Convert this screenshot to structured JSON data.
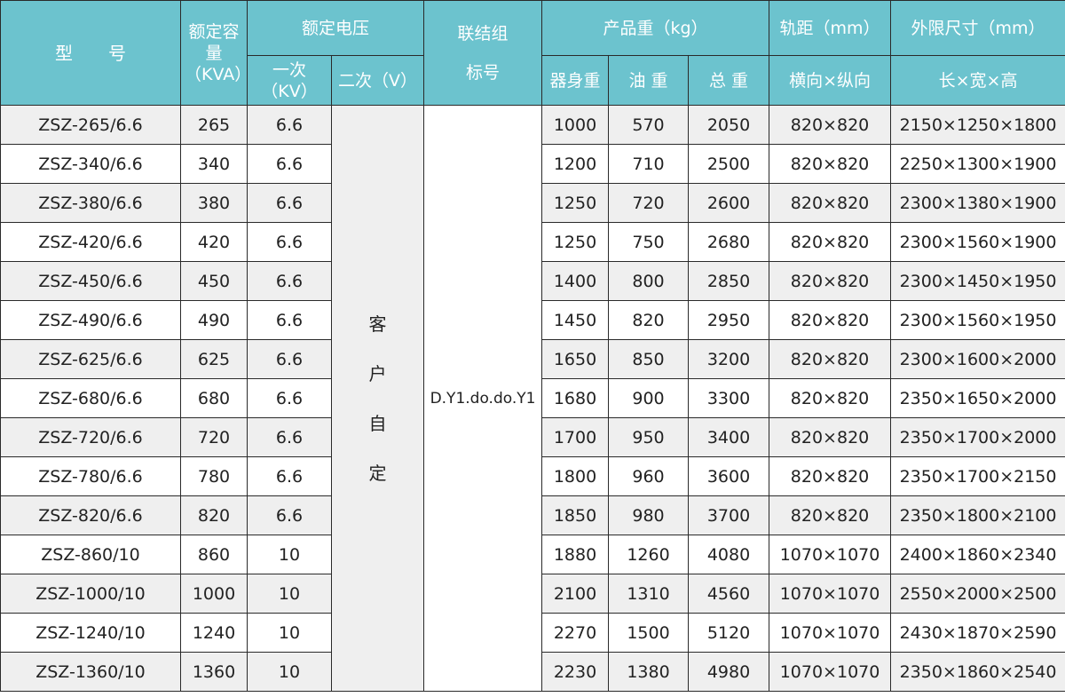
{
  "header": {
    "model": "型　　号",
    "capacity": "额定容量（KVA）",
    "rated_voltage": "额定电压",
    "primary": "一次（KV）",
    "secondary": "二次（V）",
    "connection_group": "联结组标号",
    "weight": "产品重（kg）",
    "body_weight": "器身重",
    "oil_weight": "油 重",
    "total_weight": "总 重",
    "gauge": "轨距（mm）",
    "gauge_sub": "横向×纵向",
    "dimensions": "外限尺寸（mm）",
    "dimensions_sub": "长×宽×高"
  },
  "merged": {
    "secondary_value": [
      "客",
      "户",
      "自",
      "定"
    ],
    "connection_group_value": "D.Y1.do.do.Y1"
  },
  "rows": [
    [
      "ZSZ-265/6.6",
      "265",
      "6.6",
      "1000",
      "570",
      "2050",
      "820×820",
      "2150×1250×1800"
    ],
    [
      "ZSZ-340/6.6",
      "340",
      "6.6",
      "1200",
      "710",
      "2500",
      "820×820",
      "2250×1300×1900"
    ],
    [
      "ZSZ-380/6.6",
      "380",
      "6.6",
      "1250",
      "720",
      "2600",
      "820×820",
      "2300×1380×1900"
    ],
    [
      "ZSZ-420/6.6",
      "420",
      "6.6",
      "1250",
      "750",
      "2680",
      "820×820",
      "2300×1560×1900"
    ],
    [
      "ZSZ-450/6.6",
      "450",
      "6.6",
      "1400",
      "800",
      "2850",
      "820×820",
      "2300×1450×1950"
    ],
    [
      "ZSZ-490/6.6",
      "490",
      "6.6",
      "1450",
      "820",
      "2950",
      "820×820",
      "2300×1560×1950"
    ],
    [
      "ZSZ-625/6.6",
      "625",
      "6.6",
      "1650",
      "850",
      "3200",
      "820×820",
      "2300×1600×2000"
    ],
    [
      "ZSZ-680/6.6",
      "680",
      "6.6",
      "1680",
      "900",
      "3300",
      "820×820",
      "2350×1650×2000"
    ],
    [
      "ZSZ-720/6.6",
      "720",
      "6.6",
      "1700",
      "950",
      "3400",
      "820×820",
      "2350×1700×2000"
    ],
    [
      "ZSZ-780/6.6",
      "780",
      "6.6",
      "1800",
      "960",
      "3600",
      "820×820",
      "2350×1700×2150"
    ],
    [
      "ZSZ-820/6.6",
      "820",
      "6.6",
      "1850",
      "980",
      "3700",
      "820×820",
      "2350×1800×2100"
    ],
    [
      "ZSZ-860/10",
      "860",
      "10",
      "1880",
      "1260",
      "4080",
      "1070×1070",
      "2400×1860×2340"
    ],
    [
      "ZSZ-1000/10",
      "1000",
      "10",
      "2100",
      "1310",
      "4560",
      "1070×1070",
      "2550×2000×2500"
    ],
    [
      "ZSZ-1240/10",
      "1240",
      "10",
      "2270",
      "1500",
      "5120",
      "1070×1070",
      "2430×1870×2590"
    ],
    [
      "ZSZ-1360/10",
      "1360",
      "10",
      "2230",
      "1380",
      "4980",
      "1070×1070",
      "2350×1860×2540"
    ]
  ],
  "colors": {
    "header_bg": "#6cc3ce",
    "stripe": "#efefef",
    "border": "#2a2a2a"
  }
}
